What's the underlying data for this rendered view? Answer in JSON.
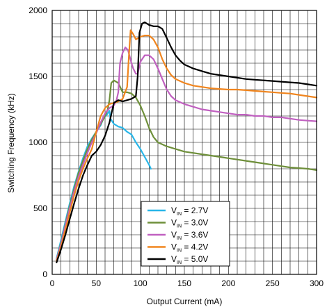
{
  "chart_data": {
    "type": "line",
    "title": "",
    "xlabel": "Output Current (mA)",
    "ylabel": "Switching Frequency (kHz)",
    "xlim": [
      0,
      300
    ],
    "ylim": [
      0,
      2000
    ],
    "x_ticks": [
      0,
      50,
      100,
      150,
      200,
      250,
      300
    ],
    "y_ticks": [
      0,
      500,
      1000,
      1500,
      2000
    ],
    "x_tick_labels": [
      "0",
      "50",
      "100",
      "150",
      "200",
      "250",
      "300"
    ],
    "y_tick_labels": [
      "0",
      "500",
      "1000",
      "1500",
      "2000"
    ],
    "grid": true,
    "grid_minor_x_step": 10,
    "grid_minor_y_step": 100,
    "legend_position": "bottom-center",
    "series": [
      {
        "name": "V_IN = 2.7V",
        "legend_main": "V",
        "legend_sub": "IN",
        "legend_value": " = 2.7V",
        "color": "#29b6e8",
        "points": [
          [
            5,
            120
          ],
          [
            10,
            260
          ],
          [
            15,
            400
          ],
          [
            20,
            540
          ],
          [
            25,
            670
          ],
          [
            30,
            780
          ],
          [
            35,
            880
          ],
          [
            40,
            970
          ],
          [
            45,
            1030
          ],
          [
            50,
            1080
          ],
          [
            55,
            1130
          ],
          [
            58,
            1180
          ],
          [
            62,
            1210
          ],
          [
            65,
            1240
          ],
          [
            66,
            1180
          ],
          [
            70,
            1140
          ],
          [
            75,
            1120
          ],
          [
            80,
            1110
          ],
          [
            85,
            1080
          ],
          [
            90,
            1060
          ],
          [
            95,
            1000
          ],
          [
            100,
            950
          ],
          [
            105,
            890
          ],
          [
            110,
            830
          ],
          [
            112,
            800
          ]
        ]
      },
      {
        "name": "V_IN = 3.0V",
        "legend_main": "V",
        "legend_sub": "IN",
        "legend_value": " = 3.0V",
        "color": "#6e8f3a",
        "points": [
          [
            5,
            110
          ],
          [
            10,
            240
          ],
          [
            15,
            380
          ],
          [
            20,
            520
          ],
          [
            25,
            650
          ],
          [
            30,
            770
          ],
          [
            35,
            860
          ],
          [
            40,
            950
          ],
          [
            45,
            1020
          ],
          [
            50,
            1080
          ],
          [
            55,
            1140
          ],
          [
            60,
            1200
          ],
          [
            63,
            1250
          ],
          [
            65,
            1320
          ],
          [
            67,
            1450
          ],
          [
            70,
            1470
          ],
          [
            75,
            1450
          ],
          [
            80,
            1380
          ],
          [
            85,
            1380
          ],
          [
            90,
            1370
          ],
          [
            95,
            1340
          ],
          [
            100,
            1280
          ],
          [
            105,
            1200
          ],
          [
            110,
            1110
          ],
          [
            115,
            1040
          ],
          [
            120,
            1000
          ],
          [
            130,
            970
          ],
          [
            140,
            950
          ],
          [
            150,
            930
          ],
          [
            160,
            920
          ],
          [
            170,
            910
          ],
          [
            180,
            900
          ],
          [
            190,
            890
          ],
          [
            200,
            880
          ],
          [
            210,
            870
          ],
          [
            220,
            860
          ],
          [
            230,
            850
          ],
          [
            240,
            840
          ],
          [
            250,
            830
          ],
          [
            260,
            820
          ],
          [
            270,
            810
          ],
          [
            280,
            805
          ],
          [
            290,
            800
          ],
          [
            300,
            790
          ]
        ]
      },
      {
        "name": "V_IN = 3.6V",
        "legend_main": "V",
        "legend_sub": "IN",
        "legend_value": " = 3.6V",
        "color": "#c060c0",
        "points": [
          [
            5,
            110
          ],
          [
            10,
            230
          ],
          [
            15,
            370
          ],
          [
            20,
            500
          ],
          [
            25,
            630
          ],
          [
            30,
            740
          ],
          [
            35,
            830
          ],
          [
            40,
            920
          ],
          [
            45,
            1000
          ],
          [
            50,
            1070
          ],
          [
            55,
            1150
          ],
          [
            60,
            1220
          ],
          [
            65,
            1260
          ],
          [
            70,
            1280
          ],
          [
            73,
            1320
          ],
          [
            75,
            1380
          ],
          [
            77,
            1600
          ],
          [
            80,
            1680
          ],
          [
            83,
            1720
          ],
          [
            86,
            1700
          ],
          [
            88,
            1650
          ],
          [
            90,
            1600
          ],
          [
            92,
            1560
          ],
          [
            95,
            1520
          ],
          [
            97,
            1520
          ],
          [
            100,
            1610
          ],
          [
            105,
            1660
          ],
          [
            110,
            1660
          ],
          [
            115,
            1630
          ],
          [
            120,
            1560
          ],
          [
            125,
            1480
          ],
          [
            130,
            1400
          ],
          [
            135,
            1350
          ],
          [
            140,
            1320
          ],
          [
            150,
            1290
          ],
          [
            160,
            1270
          ],
          [
            170,
            1250
          ],
          [
            180,
            1240
          ],
          [
            190,
            1230
          ],
          [
            200,
            1220
          ],
          [
            210,
            1210
          ],
          [
            220,
            1210
          ],
          [
            230,
            1200
          ],
          [
            240,
            1200
          ],
          [
            250,
            1190
          ],
          [
            260,
            1190
          ],
          [
            270,
            1180
          ],
          [
            280,
            1170
          ],
          [
            290,
            1165
          ],
          [
            300,
            1160
          ]
        ]
      },
      {
        "name": "V_IN = 4.2V",
        "legend_main": "V",
        "legend_sub": "IN",
        "legend_value": " = 4.2V",
        "color": "#f0851e",
        "points": [
          [
            5,
            100
          ],
          [
            10,
            210
          ],
          [
            15,
            340
          ],
          [
            20,
            470
          ],
          [
            25,
            600
          ],
          [
            30,
            710
          ],
          [
            35,
            800
          ],
          [
            40,
            880
          ],
          [
            45,
            950
          ],
          [
            50,
            1080
          ],
          [
            55,
            1200
          ],
          [
            60,
            1260
          ],
          [
            65,
            1290
          ],
          [
            70,
            1300
          ],
          [
            75,
            1310
          ],
          [
            80,
            1330
          ],
          [
            85,
            1420
          ],
          [
            87,
            1650
          ],
          [
            89,
            1850
          ],
          [
            92,
            1820
          ],
          [
            95,
            1780
          ],
          [
            100,
            1800
          ],
          [
            105,
            1810
          ],
          [
            110,
            1810
          ],
          [
            115,
            1780
          ],
          [
            120,
            1720
          ],
          [
            125,
            1630
          ],
          [
            130,
            1560
          ],
          [
            135,
            1510
          ],
          [
            140,
            1480
          ],
          [
            150,
            1450
          ],
          [
            160,
            1430
          ],
          [
            170,
            1420
          ],
          [
            180,
            1410
          ],
          [
            190,
            1405
          ],
          [
            200,
            1400
          ],
          [
            210,
            1400
          ],
          [
            220,
            1395
          ],
          [
            230,
            1390
          ],
          [
            240,
            1385
          ],
          [
            250,
            1380
          ],
          [
            260,
            1375
          ],
          [
            270,
            1370
          ],
          [
            280,
            1360
          ],
          [
            290,
            1350
          ],
          [
            300,
            1340
          ]
        ]
      },
      {
        "name": "V_IN = 5.0V",
        "legend_main": "V",
        "legend_sub": "IN",
        "legend_value": " = 5.0V",
        "color": "#000000",
        "points": [
          [
            5,
            90
          ],
          [
            10,
            190
          ],
          [
            15,
            300
          ],
          [
            20,
            420
          ],
          [
            25,
            540
          ],
          [
            30,
            650
          ],
          [
            35,
            750
          ],
          [
            40,
            830
          ],
          [
            45,
            900
          ],
          [
            50,
            930
          ],
          [
            55,
            980
          ],
          [
            60,
            1050
          ],
          [
            65,
            1150
          ],
          [
            70,
            1300
          ],
          [
            75,
            1320
          ],
          [
            80,
            1310
          ],
          [
            85,
            1320
          ],
          [
            90,
            1330
          ],
          [
            95,
            1350
          ],
          [
            97,
            1500
          ],
          [
            99,
            1830
          ],
          [
            102,
            1900
          ],
          [
            105,
            1910
          ],
          [
            110,
            1890
          ],
          [
            115,
            1880
          ],
          [
            120,
            1880
          ],
          [
            125,
            1860
          ],
          [
            130,
            1790
          ],
          [
            135,
            1720
          ],
          [
            140,
            1660
          ],
          [
            145,
            1620
          ],
          [
            150,
            1590
          ],
          [
            160,
            1560
          ],
          [
            170,
            1540
          ],
          [
            180,
            1520
          ],
          [
            190,
            1510
          ],
          [
            200,
            1500
          ],
          [
            210,
            1490
          ],
          [
            220,
            1480
          ],
          [
            230,
            1475
          ],
          [
            240,
            1470
          ],
          [
            250,
            1465
          ],
          [
            260,
            1460
          ],
          [
            270,
            1455
          ],
          [
            280,
            1450
          ],
          [
            290,
            1440
          ],
          [
            300,
            1430
          ]
        ]
      }
    ]
  }
}
